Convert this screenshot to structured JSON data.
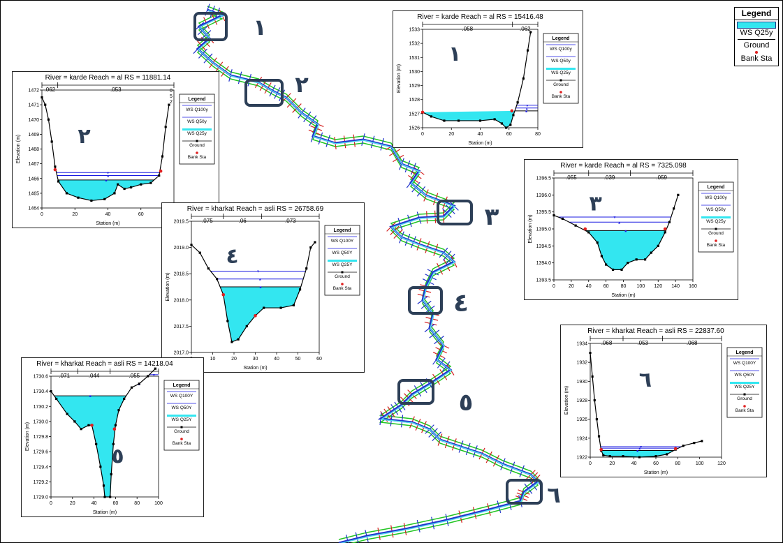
{
  "main_legend": {
    "title": "Legend",
    "items": [
      "WS Q25y",
      "Ground",
      "Bank Sta"
    ]
  },
  "markers": [
    "١",
    "٢",
    "٣",
    "٤",
    "٥",
    "٦"
  ],
  "chart_data": [
    {
      "type": "area",
      "panel": "p1",
      "marker": "١",
      "title": {
        "river": "River = karde",
        "reach": "Reach = al",
        "rs": "RS = 15416.48"
      },
      "n_values": [
        ".058",
        ".062"
      ],
      "xlabel": "Station (m)",
      "ylabel": "Elevation (m)",
      "xlim": [
        0,
        80
      ],
      "ylim": [
        1526,
        1533
      ],
      "xticks": [
        0,
        20,
        40,
        60,
        80
      ],
      "yticks": [
        1526,
        1527,
        1528,
        1529,
        1530,
        1531,
        1532,
        1533
      ],
      "ground": [
        [
          0,
          1527.1
        ],
        [
          6,
          1526.8
        ],
        [
          15,
          1526.5
        ],
        [
          25,
          1526.5
        ],
        [
          40,
          1526.5
        ],
        [
          50,
          1526.6
        ],
        [
          55,
          1526.3
        ],
        [
          58,
          1526.0
        ],
        [
          61,
          1526.2
        ],
        [
          63,
          1526.9
        ],
        [
          66,
          1527.8
        ],
        [
          70,
          1529.5
        ],
        [
          73,
          1531.5
        ],
        [
          75,
          1532.8
        ]
      ],
      "bank": [
        [
          0,
          1527.1
        ],
        [
          62,
          1527.2
        ]
      ],
      "ws": [
        {
          "name": "WS Q100y",
          "y": 1527.6
        },
        {
          "name": "WS Q50y",
          "y": 1527.4
        },
        {
          "name": "WS Q25y",
          "y": 1527.2
        }
      ],
      "fill": 1527.2,
      "legend": [
        "Legend",
        "WS Q100y",
        "WS Q50y",
        "WS Q25y",
        "Ground",
        "Bank Sta"
      ]
    },
    {
      "type": "area",
      "panel": "p2",
      "marker": "٢",
      "title": {
        "river": "River = karde",
        "reach": "Reach = al",
        "rs": "RS = 11881.14"
      },
      "n_values": [
        ".062",
        ".053"
      ],
      "n_vertical": [
        "0",
        "5",
        "2"
      ],
      "xlabel": "Station (m)",
      "ylabel": "Elevation (m)",
      "xlim": [
        0,
        80
      ],
      "ylim": [
        1464,
        1472
      ],
      "xticks": [
        0,
        20,
        40,
        60,
        80
      ],
      "yticks": [
        1464,
        1465,
        1466,
        1467,
        1468,
        1469,
        1470,
        1471,
        1472
      ],
      "ground": [
        [
          0,
          1471.5
        ],
        [
          2,
          1471
        ],
        [
          4,
          1470
        ],
        [
          6,
          1468.5
        ],
        [
          8,
          1466.8
        ],
        [
          10,
          1465.8
        ],
        [
          15,
          1465
        ],
        [
          22,
          1464.7
        ],
        [
          30,
          1464.5
        ],
        [
          38,
          1464.6
        ],
        [
          44,
          1465
        ],
        [
          46,
          1465.6
        ],
        [
          50,
          1465.3
        ],
        [
          54,
          1465.4
        ],
        [
          60,
          1465.6
        ],
        [
          66,
          1465.7
        ],
        [
          71,
          1466.2
        ],
        [
          73,
          1467.5
        ],
        [
          75,
          1469.5
        ],
        [
          77,
          1471
        ]
      ],
      "bank": [
        [
          8,
          1466.6
        ],
        [
          72,
          1466.5
        ]
      ],
      "ws": [
        {
          "name": "WS Q100y",
          "y": 1466.4
        },
        {
          "name": "WS Q50y",
          "y": 1466.2
        },
        {
          "name": "WS Q25y",
          "y": 1465.9
        }
      ],
      "fill": 1465.9,
      "legend": [
        "Legend",
        "WS Q100y",
        "WS Q50y",
        "WS Q25y",
        "Ground",
        "Bank Sta"
      ]
    },
    {
      "type": "area",
      "panel": "p3",
      "marker": "٣",
      "title": {
        "river": "River = karde",
        "reach": "Reach = al",
        "rs": "RS = 7325.098"
      },
      "n_values": [
        ".055",
        ".039",
        ".059"
      ],
      "xlabel": "Station (m)",
      "ylabel": "Elevation (m)",
      "xlim": [
        0,
        160
      ],
      "ylim": [
        1393.5,
        1396.5
      ],
      "xticks": [
        0,
        20,
        40,
        60,
        80,
        100,
        120,
        140,
        160
      ],
      "yticks": [
        1393.5,
        1394.0,
        1394.5,
        1395.0,
        1395.5,
        1396.0,
        1396.5
      ],
      "ground": [
        [
          0,
          1395.4
        ],
        [
          10,
          1395.3
        ],
        [
          25,
          1395.1
        ],
        [
          40,
          1394.9
        ],
        [
          50,
          1394.6
        ],
        [
          55,
          1394.2
        ],
        [
          60,
          1393.95
        ],
        [
          68,
          1393.8
        ],
        [
          78,
          1393.8
        ],
        [
          85,
          1394.0
        ],
        [
          95,
          1394.1
        ],
        [
          105,
          1394.1
        ],
        [
          112,
          1394.3
        ],
        [
          120,
          1394.5
        ],
        [
          128,
          1394.9
        ],
        [
          133,
          1395.2
        ],
        [
          138,
          1395.6
        ],
        [
          143,
          1396.0
        ]
      ],
      "bank": [
        [
          36,
          1395.0
        ],
        [
          128,
          1395.0
        ]
      ],
      "ws": [
        {
          "name": "WS Q100y",
          "y": 1395.35
        },
        {
          "name": "WS Q50y",
          "y": 1395.2
        },
        {
          "name": "WS Q25y",
          "y": 1394.95
        }
      ],
      "fill": 1394.95,
      "legend": [
        "Legend",
        "WS Q100y",
        "WS Q50y",
        "WS Q25y",
        "Ground",
        "Bank Sta"
      ]
    },
    {
      "type": "area",
      "panel": "p4",
      "marker": "٤",
      "title": {
        "river": "River = kharkat",
        "reach": "Reach = asli",
        "rs": "RS = 26758.69"
      },
      "n_values": [
        ".075",
        ".06",
        ".073"
      ],
      "xlabel": "Station (m)",
      "ylabel": "Elevation (m)",
      "xlim": [
        0,
        60
      ],
      "ylim": [
        2017,
        2019.5
      ],
      "xticks": [
        0,
        10,
        20,
        30,
        40,
        50,
        60
      ],
      "yticks": [
        2017.0,
        2017.5,
        2018.0,
        2018.5,
        2019.0,
        2019.5
      ],
      "ground": [
        [
          0,
          2019.05
        ],
        [
          4,
          2018.9
        ],
        [
          8,
          2018.6
        ],
        [
          12,
          2018.4
        ],
        [
          15,
          2018.1
        ],
        [
          17,
          2017.6
        ],
        [
          19,
          2017.2
        ],
        [
          22,
          2017.25
        ],
        [
          26,
          2017.5
        ],
        [
          30,
          2017.7
        ],
        [
          34,
          2017.85
        ],
        [
          42,
          2017.85
        ],
        [
          48,
          2017.9
        ],
        [
          51,
          2018.2
        ],
        [
          54,
          2018.6
        ],
        [
          56,
          2019.0
        ],
        [
          58,
          2019.1
        ]
      ],
      "bank": [
        [
          15,
          2018.1
        ],
        [
          30,
          2017.7
        ]
      ],
      "ws": [
        {
          "name": "WS Q100Y",
          "y": 2018.55
        },
        {
          "name": "WS Q50Y",
          "y": 2018.4
        },
        {
          "name": "WS Q25Y",
          "y": 2018.25
        }
      ],
      "fill": 2018.25,
      "legend": [
        "Legend",
        "WS Q100Y",
        "WS Q50Y",
        "WS Q25Y",
        "Ground",
        "Bank Sta"
      ]
    },
    {
      "type": "area",
      "panel": "p5",
      "marker": "٥",
      "title": {
        "river": "River = kharkat",
        "reach": "Reach = asli",
        "rs": "RS = 14218.04"
      },
      "n_values": [
        ".071",
        ".044",
        ".055"
      ],
      "xlabel": "Station (m)",
      "ylabel": "Elevation (m)",
      "xlim": [
        0,
        100
      ],
      "ylim": [
        1729.0,
        1730.6
      ],
      "xticks": [
        0,
        20,
        40,
        60,
        80,
        100
      ],
      "yticks": [
        1729.0,
        1729.2,
        1729.4,
        1729.6,
        1729.8,
        1730.0,
        1730.2,
        1730.4,
        1730.6
      ],
      "ground": [
        [
          0,
          1730.4
        ],
        [
          5,
          1730.3
        ],
        [
          15,
          1730.1
        ],
        [
          22,
          1730.0
        ],
        [
          28,
          1729.9
        ],
        [
          35,
          1729.95
        ],
        [
          38,
          1729.95
        ],
        [
          42,
          1729.7
        ],
        [
          46,
          1729.4
        ],
        [
          49,
          1729.15
        ],
        [
          50,
          1729.0
        ],
        [
          55,
          1729.0
        ],
        [
          56,
          1729.3
        ],
        [
          58,
          1729.7
        ],
        [
          60,
          1729.95
        ],
        [
          63,
          1730.15
        ],
        [
          68,
          1730.3
        ],
        [
          75,
          1730.45
        ],
        [
          82,
          1730.5
        ],
        [
          90,
          1730.6
        ],
        [
          97,
          1730.7
        ]
      ],
      "bank": [
        [
          38,
          1729.95
        ],
        [
          59,
          1729.9
        ]
      ],
      "ws": [
        {
          "name": "WS Q100Y",
          "y": 1730.62
        },
        {
          "name": "WS Q50Y",
          "y": 1730.5
        },
        {
          "name": "WS Q25Y",
          "y": 1730.34
        }
      ],
      "fill": 1730.34,
      "legend": [
        "Legend",
        "WS Q100Y",
        "WS Q50Y",
        "WS Q25Y",
        "Ground",
        "Bank Sta"
      ]
    },
    {
      "type": "area",
      "panel": "p6",
      "marker": "٦",
      "title": {
        "river": "River = kharkat",
        "reach": "Reach = asli",
        "rs": "RS = 22837.60"
      },
      "n_values": [
        ".068",
        ".053",
        ".068"
      ],
      "xlabel": "Station (m)",
      "ylabel": "Elevation (m)",
      "xlim": [
        0,
        120
      ],
      "ylim": [
        1922,
        1934
      ],
      "xticks": [
        0,
        20,
        40,
        60,
        80,
        100,
        120
      ],
      "yticks": [
        1922,
        1924,
        1926,
        1928,
        1930,
        1932,
        1934
      ],
      "ground": [
        [
          0,
          1933
        ],
        [
          2,
          1930.5
        ],
        [
          4,
          1928
        ],
        [
          6,
          1926
        ],
        [
          8,
          1924.2
        ],
        [
          10,
          1922.7
        ],
        [
          12,
          1922.2
        ],
        [
          18,
          1922.1
        ],
        [
          30,
          1922.1
        ],
        [
          45,
          1922.0
        ],
        [
          60,
          1922.1
        ],
        [
          70,
          1922.3
        ],
        [
          78,
          1922.8
        ],
        [
          85,
          1923.2
        ],
        [
          95,
          1923.5
        ],
        [
          102,
          1923.7
        ]
      ],
      "bank": [
        [
          10,
          1922.8
        ],
        [
          78,
          1922.9
        ]
      ],
      "ws": [
        {
          "name": "WS Q100Y",
          "y": 1923.1
        },
        {
          "name": "WS Q50Y",
          "y": 1922.95
        },
        {
          "name": "WS Q25Y",
          "y": 1922.7
        }
      ],
      "fill": 1922.7,
      "legend": [
        "Legend",
        "WS Q100Y",
        "WS Q50Y",
        "WS Q25Y",
        "Ground",
        "Bank Sta"
      ]
    }
  ],
  "colors": {
    "water": "#33e6f0",
    "ws": "#1a1ae0",
    "ground": "#000000",
    "bank": "#e02020",
    "marker_box": "#2d3f57",
    "river_green": "#22c522",
    "river_red": "#d42020",
    "river_blue": "#2233cc"
  }
}
